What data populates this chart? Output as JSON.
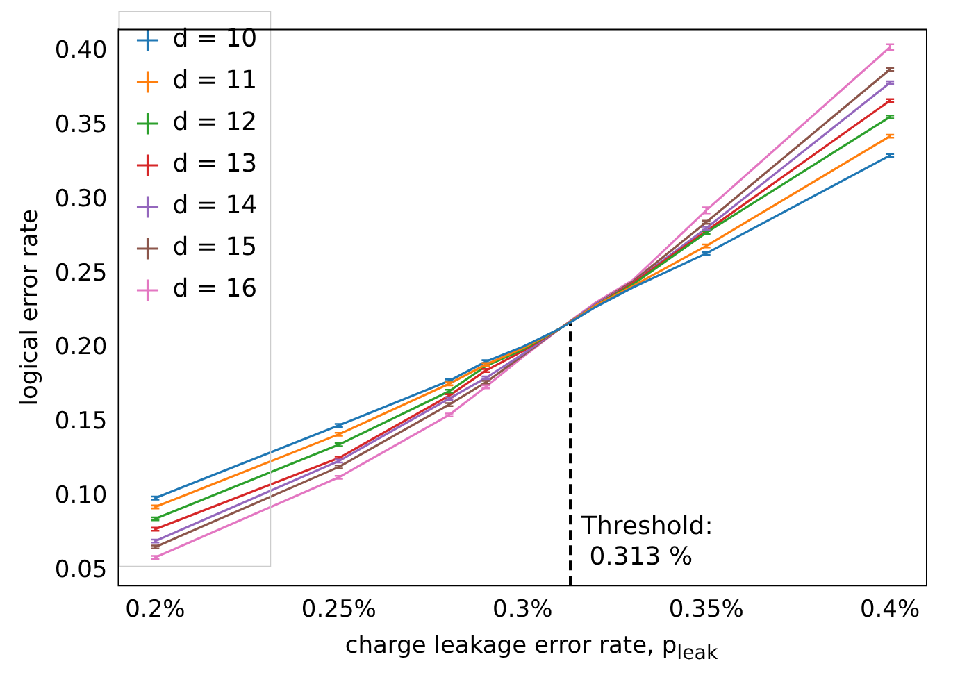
{
  "chart_data": {
    "type": "line",
    "xlabel": "charge leakage error rate, p$_{leak}$",
    "ylabel": "logical error rate",
    "x": [
      0.2,
      0.25,
      0.28,
      0.29,
      0.3,
      0.31,
      0.32,
      0.33,
      0.35,
      0.4
    ],
    "xlim": [
      0.19,
      0.41
    ],
    "xticks": [
      {
        "value": 0.2,
        "label": "0.2%"
      },
      {
        "value": 0.25,
        "label": "0.25%"
      },
      {
        "value": 0.3,
        "label": "0.3%"
      },
      {
        "value": 0.35,
        "label": "0.35%"
      },
      {
        "value": 0.4,
        "label": "0.4%"
      }
    ],
    "ylim": [
      0.04,
      0.415
    ],
    "yticks": [
      {
        "value": 0.05,
        "label": "0.05"
      },
      {
        "value": 0.1,
        "label": "0.10"
      },
      {
        "value": 0.15,
        "label": "0.15"
      },
      {
        "value": 0.2,
        "label": "0.20"
      },
      {
        "value": 0.25,
        "label": "0.25"
      },
      {
        "value": 0.3,
        "label": "0.30"
      },
      {
        "value": 0.35,
        "label": "0.35"
      },
      {
        "value": 0.4,
        "label": "0.40"
      }
    ],
    "grid": false,
    "legend": "top left",
    "marker": "none",
    "line_style": "solid",
    "series": [
      {
        "name": "d = 10",
        "color": "#1f77b4",
        "values": [
          0.099,
          0.148,
          0.178,
          0.191,
          0.201,
          0.213,
          0.228,
          0.241,
          0.264,
          0.33
        ],
        "errors": [
          0.001,
          0.001,
          0.001,
          0.001,
          null,
          null,
          null,
          null,
          0.001,
          0.001
        ]
      },
      {
        "name": "d = 11",
        "color": "#ff7f0e",
        "values": [
          0.093,
          0.142,
          0.176,
          0.189,
          0.2,
          0.213,
          0.229,
          0.242,
          0.269,
          0.343
        ],
        "errors": [
          0.001,
          0.001,
          0.001,
          0.001,
          null,
          null,
          null,
          null,
          0.001,
          0.001
        ]
      },
      {
        "name": "d = 12",
        "color": "#2ca02c",
        "values": [
          0.085,
          0.135,
          0.171,
          0.188,
          0.199,
          0.213,
          0.229,
          0.243,
          0.278,
          0.356
        ],
        "errors": [
          0.001,
          0.001,
          0.001,
          null,
          null,
          null,
          null,
          null,
          0.001,
          0.001
        ]
      },
      {
        "name": "d = 13",
        "color": "#d62728",
        "values": [
          0.078,
          0.126,
          0.168,
          0.185,
          0.198,
          0.213,
          0.229,
          0.244,
          0.279,
          0.367
        ],
        "errors": [
          0.001,
          0.001,
          0.001,
          0.001,
          null,
          null,
          null,
          null,
          null,
          0.001
        ]
      },
      {
        "name": "d = 14",
        "color": "#9467bd",
        "values": [
          0.07,
          0.124,
          0.166,
          0.18,
          0.196,
          0.213,
          0.23,
          0.244,
          0.281,
          0.379
        ],
        "errors": [
          0.001,
          0.001,
          0.001,
          0.001,
          null,
          null,
          null,
          null,
          0.001,
          0.001
        ]
      },
      {
        "name": "d = 15",
        "color": "#8c564b",
        "values": [
          0.066,
          0.12,
          0.162,
          0.177,
          0.195,
          0.213,
          0.23,
          0.245,
          0.285,
          0.388
        ],
        "errors": [
          0.001,
          0.001,
          0.001,
          0.001,
          null,
          null,
          null,
          null,
          0.001,
          0.001
        ]
      },
      {
        "name": "d = 16",
        "color": "#e377c2",
        "values": [
          0.059,
          0.113,
          0.155,
          0.174,
          0.194,
          0.213,
          0.231,
          0.246,
          0.293,
          0.403
        ],
        "errors": [
          0.001,
          0.001,
          0.001,
          0.001,
          null,
          null,
          null,
          null,
          0.002,
          0.002
        ]
      },
      {
        "type": "line",
        "color": "#000000",
        "line_style": "dashed",
        "x": [
          0.313,
          0.313
        ],
        "values": [
          0.04,
          0.217
        ]
      }
    ],
    "annotations": [
      {
        "text": "Threshold:\n 0.313 %",
        "x": 0.313,
        "y": 0.05
      }
    ]
  }
}
